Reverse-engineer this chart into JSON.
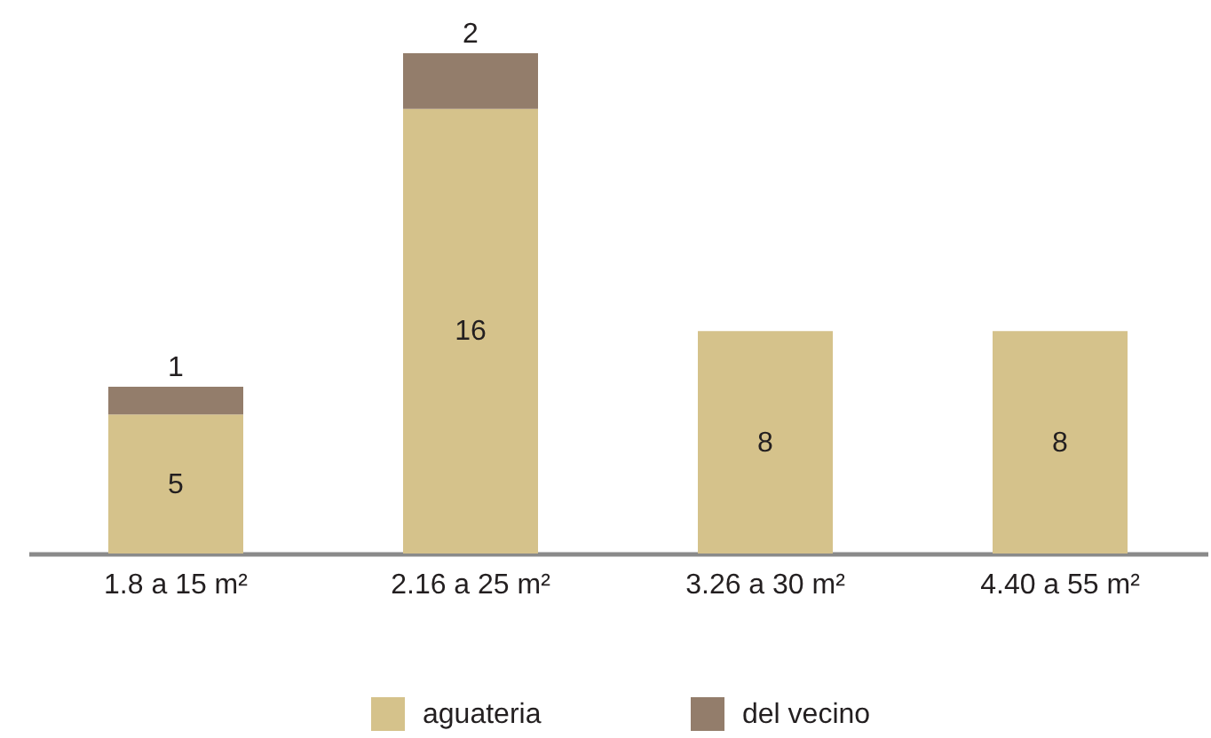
{
  "chart_data": {
    "type": "bar",
    "stacked": true,
    "categories": [
      "1.8 a 15 m²",
      "2.16 a 25 m²",
      "3.26 a 30 m²",
      "4.40 a 55 m²"
    ],
    "series": [
      {
        "name": "aguateria",
        "color": "#d5c28b",
        "values": [
          5,
          16,
          8,
          8
        ]
      },
      {
        "name": "del vecino",
        "color": "#937d6b",
        "values": [
          1,
          2,
          null,
          null
        ]
      }
    ],
    "data_labels": true,
    "legend": "bottom",
    "tick_labels": "x"
  }
}
